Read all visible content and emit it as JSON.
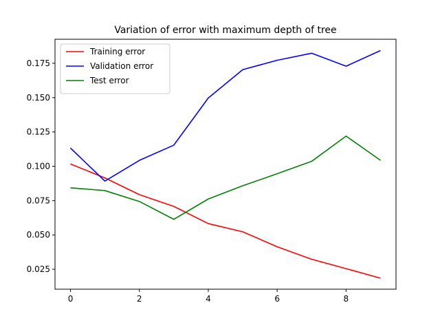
{
  "chart_data": {
    "type": "line",
    "title": "Variation of error with maximum depth of tree",
    "xlabel": "",
    "ylabel": "",
    "x": [
      0,
      1,
      2,
      3,
      4,
      5,
      6,
      7,
      8,
      9
    ],
    "xlim": [
      -0.45,
      9.45
    ],
    "ylim": [
      0.0105,
      0.1925
    ],
    "xticks": [
      0,
      2,
      4,
      6,
      8
    ],
    "xtick_labels": [
      "0",
      "2",
      "4",
      "6",
      "8"
    ],
    "yticks": [
      0.025,
      0.05,
      0.075,
      0.1,
      0.125,
      0.15,
      0.175
    ],
    "ytick_labels": [
      "0.025",
      "0.050",
      "0.075",
      "0.100",
      "0.125",
      "0.150",
      "0.175"
    ],
    "grid": false,
    "legend_position": "top-left",
    "series": [
      {
        "name": "Training error",
        "color": "#ff0000",
        "values": [
          0.1017,
          0.0915,
          0.0794,
          0.0708,
          0.0583,
          0.0523,
          0.0414,
          0.0323,
          0.0255,
          0.0185
        ]
      },
      {
        "name": "Validation error",
        "color": "#0000ff",
        "values": [
          0.1133,
          0.0892,
          0.1043,
          0.1154,
          0.1497,
          0.1704,
          0.1772,
          0.1823,
          0.1729,
          0.1843
        ]
      },
      {
        "name": "Test error",
        "color": "#008000",
        "values": [
          0.0843,
          0.0823,
          0.0744,
          0.0614,
          0.0762,
          0.0858,
          0.0946,
          0.1036,
          0.122,
          0.1043
        ]
      }
    ]
  }
}
